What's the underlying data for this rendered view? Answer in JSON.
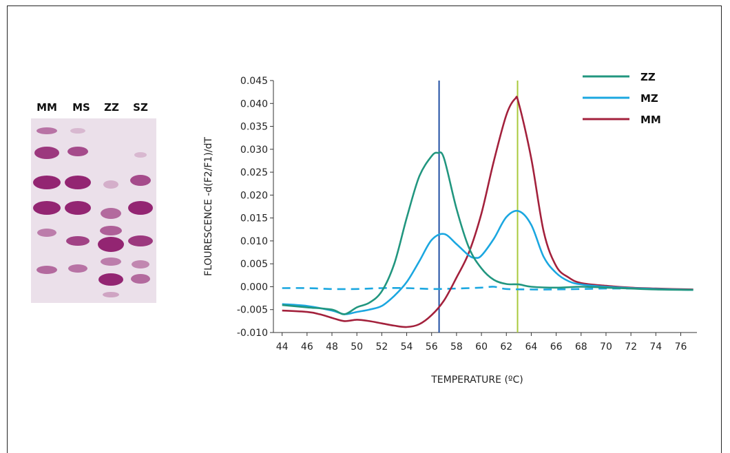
{
  "gel": {
    "lanes": [
      "MM",
      "MS",
      "ZZ",
      "SZ"
    ],
    "background_color": "#e9dde7",
    "band_color": "#8e1a6b"
  },
  "chart_data": {
    "type": "line",
    "title": "",
    "xlabel": "TEMPERATURE (ºC)",
    "ylabel": "FLOURESCENCE -d(F2/F1)/dT",
    "xlim": [
      43.3,
      77.3
    ],
    "ylim": [
      -0.01,
      0.045
    ],
    "x_ticks": [
      "44",
      "46",
      "48",
      "50",
      "52",
      "54",
      "56",
      "58",
      "60",
      "62",
      "64",
      "66",
      "68",
      "70",
      "72",
      "74",
      "76"
    ],
    "y_ticks": [
      "0.045",
      "0.040",
      "0.035",
      "0.030",
      "0.025",
      "0.020",
      "0.015",
      "0.010",
      "0.005",
      "0.000",
      "-0.005",
      "-0.010"
    ],
    "legend_position": "top-right",
    "series": [
      {
        "name": "ZZ",
        "color": "#21967f",
        "x": [
          44,
          46,
          48,
          49,
          50,
          51,
          52,
          53,
          54,
          55,
          56,
          56.5,
          57,
          58,
          59,
          60,
          61,
          62,
          63,
          64,
          66,
          68,
          70,
          72,
          74,
          77
        ],
        "y": [
          -0.004,
          -0.0045,
          -0.005,
          -0.006,
          -0.0045,
          -0.0035,
          -0.001,
          0.005,
          0.015,
          0.024,
          0.0285,
          0.0292,
          0.028,
          0.017,
          0.0085,
          0.004,
          0.0015,
          0.0006,
          0.0005,
          0.0,
          -0.0002,
          0.0,
          -0.0002,
          -0.0004,
          -0.0006,
          -0.0007
        ]
      },
      {
        "name": "MZ",
        "color": "#1ba7e0",
        "x": [
          44,
          46,
          48,
          49,
          50,
          51,
          52,
          53,
          54,
          55,
          56,
          57,
          58,
          59,
          59.5,
          60,
          61,
          62,
          63,
          64,
          65,
          66,
          67,
          68,
          70,
          72,
          74,
          77
        ],
        "y": [
          -0.0038,
          -0.0042,
          -0.0052,
          -0.006,
          -0.0055,
          -0.005,
          -0.0042,
          -0.002,
          0.001,
          0.0055,
          0.0102,
          0.0115,
          0.0093,
          0.0068,
          0.0063,
          0.0068,
          0.0105,
          0.0152,
          0.0165,
          0.0135,
          0.0065,
          0.003,
          0.0012,
          0.0005,
          0.0,
          -0.0003,
          -0.0005,
          -0.0007
        ]
      },
      {
        "name": "MM",
        "color": "#a3213c",
        "x": [
          44,
          46,
          47,
          48,
          49,
          50,
          51,
          52,
          53,
          54,
          55,
          56,
          57,
          58,
          59,
          60,
          61,
          62,
          62.7,
          63,
          64,
          65,
          66,
          67,
          68,
          70,
          72,
          74,
          77
        ],
        "y": [
          -0.0052,
          -0.0055,
          -0.006,
          -0.0068,
          -0.0075,
          -0.0072,
          -0.0075,
          -0.008,
          -0.0085,
          -0.0088,
          -0.0082,
          -0.0062,
          -0.003,
          0.002,
          0.0075,
          0.016,
          0.0275,
          0.0375,
          0.041,
          0.04,
          0.028,
          0.012,
          0.0045,
          0.002,
          0.0008,
          0.0002,
          -0.0002,
          -0.0004,
          -0.0006
        ]
      },
      {
        "name": "",
        "color": "#1ba7e0",
        "style": "dashed",
        "x": [
          44,
          46,
          48,
          50,
          52,
          54,
          56,
          58,
          60,
          61,
          62,
          64,
          66,
          68,
          70,
          72,
          74,
          77
        ],
        "y": [
          -0.0003,
          -0.0003,
          -0.0005,
          -0.0005,
          -0.0003,
          -0.0003,
          -0.0005,
          -0.0004,
          -0.0002,
          0.0,
          -0.0005,
          -0.0006,
          -0.0006,
          -0.0005,
          -0.0004,
          -0.0004,
          -0.0005,
          -0.0007
        ]
      }
    ],
    "vertical_markers": [
      {
        "x": 56.6,
        "color": "#1f4ea3"
      },
      {
        "x": 62.9,
        "color": "#a8c93a"
      }
    ]
  }
}
